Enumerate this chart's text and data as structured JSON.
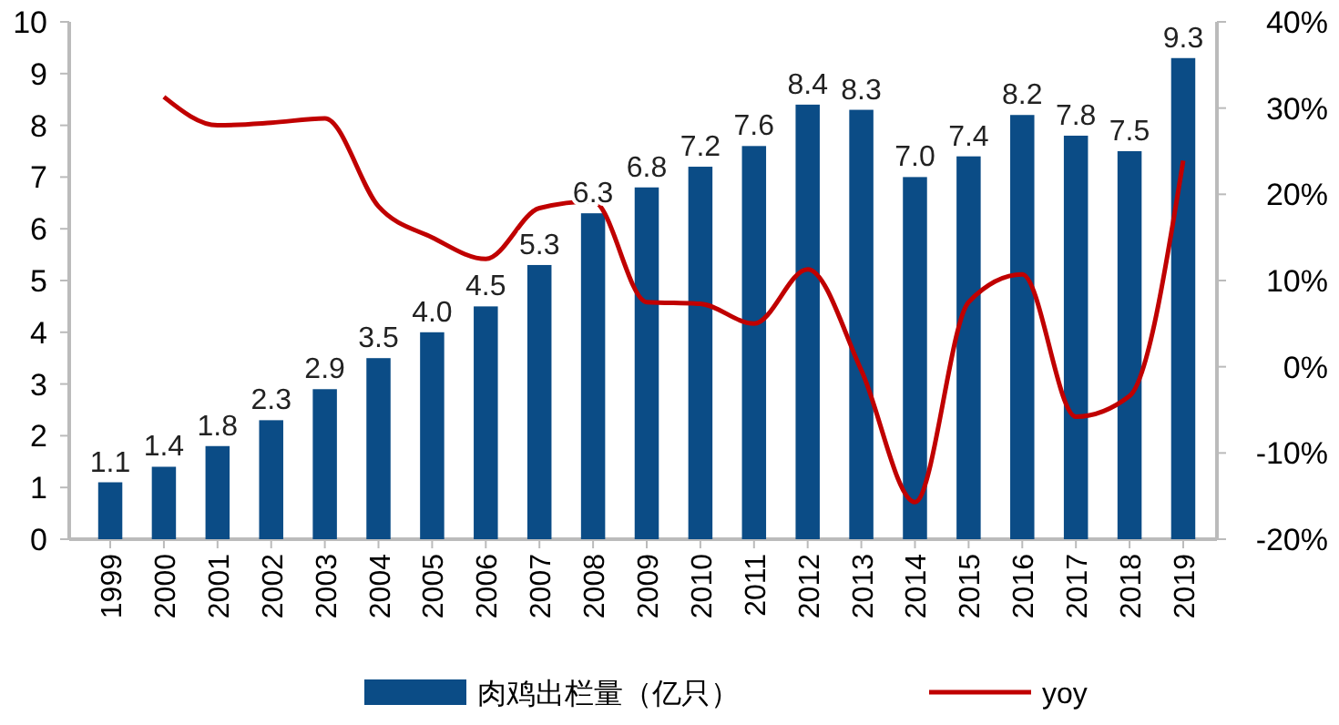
{
  "chart_data": {
    "type": "bar",
    "categories": [
      "1999",
      "2000",
      "2001",
      "2002",
      "2003",
      "2004",
      "2005",
      "2006",
      "2007",
      "2008",
      "2009",
      "2010",
      "2011",
      "2012",
      "2013",
      "2014",
      "2015",
      "2016",
      "2017",
      "2018",
      "2019"
    ],
    "series": [
      {
        "name": "肉鸡出栏量（亿只）",
        "color": "#0b4c86",
        "values": [
          1.1,
          1.4,
          1.8,
          2.3,
          2.9,
          3.5,
          4.0,
          4.5,
          5.3,
          6.3,
          6.8,
          7.2,
          7.6,
          8.4,
          8.3,
          7.0,
          7.4,
          8.2,
          7.8,
          7.5,
          9.3
        ],
        "value_labels": [
          "1.1",
          "1.4",
          "1.8",
          "2.3",
          "2.9",
          "3.5",
          "4.0",
          "4.5",
          "5.3",
          "6.3",
          "6.8",
          "7.2",
          "7.6",
          "8.4",
          "8.3",
          "7.0",
          "7.4",
          "8.2",
          "7.8",
          "7.5",
          "9.3"
        ]
      },
      {
        "name": "yoy",
        "type": "line",
        "axis": "y2",
        "color": "#c00000",
        "values": [
          null,
          31.3,
          28.0,
          28.3,
          28.8,
          18.6,
          15.0,
          12.5,
          18.4,
          19.2,
          7.5,
          7.3,
          5.0,
          11.3,
          -0.4,
          -15.7,
          7.5,
          10.7,
          -5.8,
          -3.4,
          23.9
        ]
      }
    ],
    "ylim": [
      0,
      10
    ],
    "yticks": [
      0,
      1,
      2,
      3,
      4,
      5,
      6,
      7,
      8,
      9,
      10
    ],
    "y2lim": [
      -20,
      40
    ],
    "y2ticks": [
      {
        "value": -20,
        "label": "-20%"
      },
      {
        "value": -10,
        "label": "-10%"
      },
      {
        "value": 0,
        "label": "0%"
      },
      {
        "value": 10,
        "label": "10%"
      },
      {
        "value": 20,
        "label": "20%"
      },
      {
        "value": 30,
        "label": "30%"
      },
      {
        "value": 40,
        "label": "40%"
      }
    ],
    "marker": "none",
    "line_style": "solid",
    "grid": false,
    "legend": "bottom"
  }
}
